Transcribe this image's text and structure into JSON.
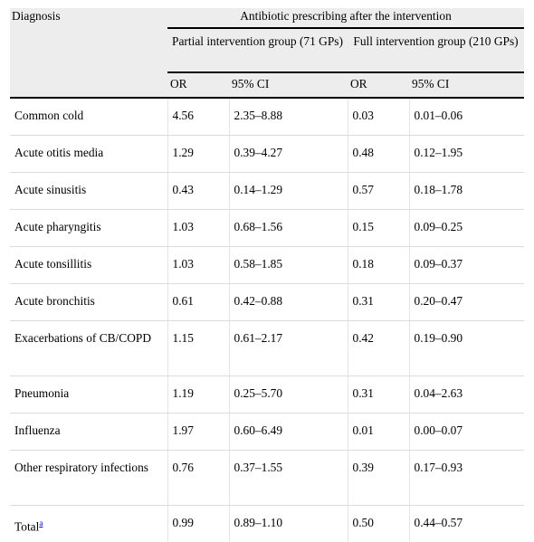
{
  "header": {
    "diagnosis": "Diagnosis",
    "group_title": "Antibiotic prescribing after the intervention",
    "partial_group": "Partial intervention group (71 GPs)",
    "full_group": "Full intervention group (210 GPs)",
    "or": "OR",
    "ci": "95% CI"
  },
  "rows": [
    {
      "diagnosis": "Common cold",
      "p_or": "4.56",
      "p_ci": "2.35–8.88",
      "f_or": "0.03",
      "f_ci": "0.01–0.06"
    },
    {
      "diagnosis": "Acute otitis media",
      "p_or": "1.29",
      "p_ci": "0.39–4.27",
      "f_or": "0.48",
      "f_ci": "0.12–1.95"
    },
    {
      "diagnosis": "Acute sinusitis",
      "p_or": "0.43",
      "p_ci": "0.14–1.29",
      "f_or": "0.57",
      "f_ci": "0.18–1.78"
    },
    {
      "diagnosis": "Acute pharyngitis",
      "p_or": "1.03",
      "p_ci": "0.68–1.56",
      "f_or": "0.15",
      "f_ci": "0.09–0.25"
    },
    {
      "diagnosis": "Acute tonsillitis",
      "p_or": "1.03",
      "p_ci": "0.58–1.85",
      "f_or": "0.18",
      "f_ci": "0.09–0.37"
    },
    {
      "diagnosis": "Acute bronchitis",
      "p_or": "0.61",
      "p_ci": "0.42–0.88",
      "f_or": "0.31",
      "f_ci": "0.20–0.47"
    },
    {
      "diagnosis": "Exacerbations of CB/COPD",
      "p_or": "1.15",
      "p_ci": "0.61–2.17",
      "f_or": "0.42",
      "f_ci": "0.19–0.90"
    },
    {
      "diagnosis": "Pneumonia",
      "p_or": "1.19",
      "p_ci": "0.25–5.70",
      "f_or": "0.31",
      "f_ci": "0.04–2.63"
    },
    {
      "diagnosis": "Influenza",
      "p_or": "1.97",
      "p_ci": "0.60–6.49",
      "f_or": "0.01",
      "f_ci": "0.00–0.07"
    },
    {
      "diagnosis": "Other respiratory infections",
      "p_or": "0.76",
      "p_ci": "0.37–1.55",
      "f_or": "0.39",
      "f_ci": "0.17–0.93"
    }
  ],
  "total": {
    "diagnosis": "Total",
    "footnote": "a",
    "p_or": "0.99",
    "p_ci": "0.89–1.10",
    "f_or": "0.50",
    "f_ci": "0.44–0.57"
  }
}
